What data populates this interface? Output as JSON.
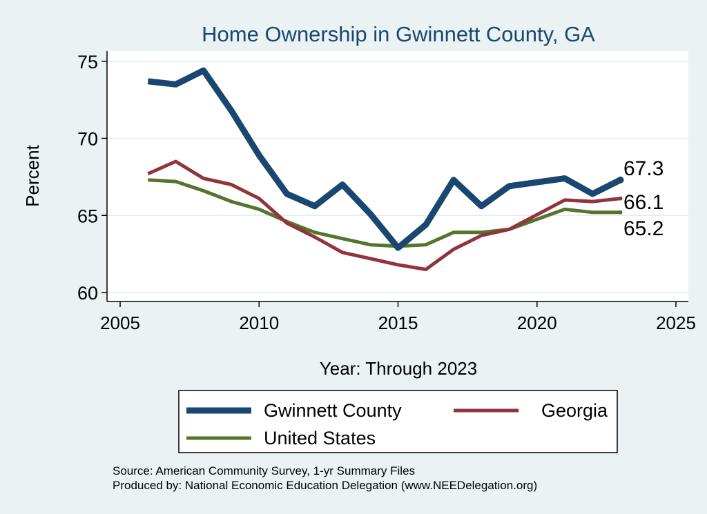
{
  "chart_data": {
    "type": "line",
    "title": "Home Ownership in Gwinnett County, GA",
    "xlabel": "Year: Through 2023",
    "ylabel": "Percent",
    "xlim": [
      2005,
      2025
    ],
    "ylim": [
      60,
      75
    ],
    "x_ticks": [
      2005,
      2010,
      2015,
      2020,
      2025
    ],
    "y_ticks": [
      60,
      65,
      70,
      75
    ],
    "grid": true,
    "legend_position": "bottom",
    "series": [
      {
        "name": "Gwinnett County",
        "color": "#1a476f",
        "x": [
          2006,
          2007,
          2008,
          2009,
          2010,
          2011,
          2012,
          2013,
          2014,
          2015,
          2016,
          2017,
          2018,
          2019,
          2021,
          2022,
          2023
        ],
        "values": [
          73.7,
          73.5,
          74.4,
          71.8,
          68.9,
          66.4,
          65.6,
          67.0,
          65.1,
          62.9,
          64.4,
          67.3,
          65.6,
          66.9,
          67.4,
          66.4,
          67.3
        ]
      },
      {
        "name": "Georgia",
        "color": "#90353b",
        "x": [
          2006,
          2007,
          2008,
          2009,
          2010,
          2011,
          2012,
          2013,
          2014,
          2015,
          2016,
          2017,
          2018,
          2019,
          2021,
          2022,
          2023
        ],
        "values": [
          67.7,
          68.5,
          67.4,
          67.0,
          66.1,
          64.5,
          63.6,
          62.6,
          62.2,
          61.8,
          61.5,
          62.8,
          63.7,
          64.1,
          66.0,
          65.9,
          66.1
        ]
      },
      {
        "name": "United States",
        "color": "#55752f",
        "x": [
          2006,
          2007,
          2008,
          2009,
          2010,
          2011,
          2012,
          2013,
          2014,
          2015,
          2016,
          2017,
          2018,
          2019,
          2021,
          2022,
          2023
        ],
        "values": [
          67.3,
          67.2,
          66.6,
          65.9,
          65.4,
          64.6,
          63.9,
          63.5,
          63.1,
          63.0,
          63.1,
          63.9,
          63.9,
          64.1,
          65.4,
          65.2,
          65.2
        ]
      }
    ],
    "end_labels": [
      "67.3",
      "66.1",
      "65.2"
    ]
  },
  "notes": {
    "source": "Source: American Community Survey, 1-yr Summary Files",
    "producer": "Produced by: National Economic Education Delegation (www.NEEDelegation.org)"
  }
}
